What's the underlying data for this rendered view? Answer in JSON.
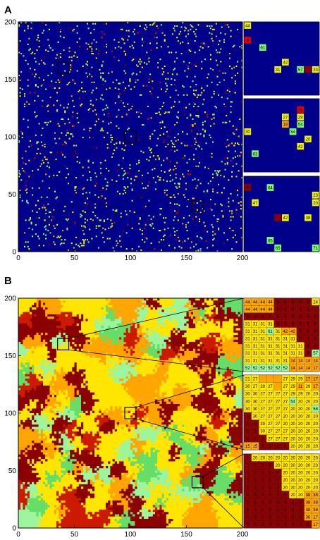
{
  "panels": {
    "a": {
      "letter": "A",
      "x_ticks": [
        "0",
        "50",
        "100",
        "150",
        "200"
      ],
      "y_ticks": [
        "0",
        "50",
        "100",
        "150",
        "200"
      ],
      "colors": {
        "background": "#00008b",
        "green": "#7cfc6c",
        "yellow": "#f2f200",
        "orange": "#ffa500",
        "red": "#e00000",
        "dark_red": "#8b0000"
      },
      "insets": [
        {
          "cells": [
            {
              "c": 0,
              "r": 0,
              "v": "44",
              "col": "yellow"
            },
            {
              "c": 0,
              "r": 2,
              "v": "6",
              "col": "red"
            },
            {
              "c": 2,
              "r": 3,
              "v": "61",
              "col": "green"
            },
            {
              "c": 5,
              "r": 5,
              "v": "42",
              "col": "yellow"
            },
            {
              "c": 4,
              "r": 6,
              "v": "31",
              "col": "yellow"
            },
            {
              "c": 7,
              "r": 6,
              "v": "57",
              "col": "green"
            },
            {
              "c": 8,
              "r": 6,
              "v": "",
              "col": "dark_red"
            },
            {
              "c": 9,
              "r": 6,
              "v": "33",
              "col": "yellow"
            }
          ]
        },
        {
          "cells": [
            {
              "c": 7,
              "r": 1,
              "v": "11",
              "col": "red"
            },
            {
              "c": 5,
              "r": 2,
              "v": "27",
              "col": "yellow"
            },
            {
              "c": 7,
              "r": 2,
              "v": "29",
              "col": "yellow"
            },
            {
              "c": 5,
              "r": 3,
              "v": "18",
              "col": "orange"
            },
            {
              "c": 7,
              "r": 3,
              "v": "54",
              "col": "green"
            },
            {
              "c": 0,
              "r": 4,
              "v": "30",
              "col": "yellow"
            },
            {
              "c": 6,
              "r": 4,
              "v": "54",
              "col": "green"
            },
            {
              "c": 8,
              "r": 5,
              "v": "20",
              "col": "yellow"
            },
            {
              "c": 7,
              "r": 6,
              "v": "42",
              "col": "yellow"
            },
            {
              "c": 1,
              "r": 7,
              "v": "63",
              "col": "green"
            }
          ]
        },
        {
          "cells": [
            {
              "c": 0,
              "r": 1,
              "v": "5",
              "col": "dark_red"
            },
            {
              "c": 3,
              "r": 1,
              "v": "64",
              "col": "green"
            },
            {
              "c": 9,
              "r": 2,
              "v": "23",
              "col": "yellow"
            },
            {
              "c": 1,
              "r": 3,
              "v": "47",
              "col": "yellow"
            },
            {
              "c": 9,
              "r": 3,
              "v": "20",
              "col": "yellow"
            },
            {
              "c": 4,
              "r": 5,
              "v": "",
              "col": "dark_red"
            },
            {
              "c": 5,
              "r": 5,
              "v": "42",
              "col": "yellow"
            },
            {
              "c": 8,
              "r": 5,
              "v": "38",
              "col": "yellow"
            },
            {
              "c": 3,
              "r": 8,
              "v": "65",
              "col": "green"
            },
            {
              "c": 4,
              "r": 9,
              "v": "65",
              "col": "green"
            },
            {
              "c": 9,
              "r": 9,
              "v": "71",
              "col": "green"
            }
          ]
        }
      ]
    },
    "b": {
      "letter": "B",
      "x_ticks": [
        "0",
        "50",
        "100",
        "150",
        "200"
      ],
      "y_ticks": [
        "0",
        "50",
        "100",
        "150",
        "200"
      ],
      "colors": {
        "dark_red": "#8b0000",
        "red": "#cc1a00",
        "orange": "#ffa500",
        "yellow": "#ffe500",
        "light_green": "#9cf59c",
        "green": "#66dd66"
      },
      "insets": [
        {
          "rows": [
            [
              "44",
              "44",
              "44",
              "44",
              "9",
              "9",
              "9",
              "9",
              "9",
              "24"
            ],
            [
              "44",
              "44",
              "44",
              "44",
              "9",
              "9",
              "9",
              "9",
              "9",
              "9"
            ],
            [
              "9",
              "9",
              "9",
              "9",
              "9",
              "9",
              "9",
              "9",
              "9",
              "9"
            ],
            [
              "31",
              "31",
              "31",
              "31",
              "9",
              "9",
              "9",
              "9",
              "9",
              "9"
            ],
            [
              "31",
              "31",
              "31",
              "61",
              "31",
              "42",
              "42",
              "9",
              "9",
              "9"
            ],
            [
              "31",
              "31",
              "31",
              "31",
              "31",
              "31",
              "31",
              "9",
              "9",
              "9"
            ],
            [
              "31",
              "31",
              "31",
              "31",
              "31",
              "31",
              "31",
              "31",
              "9",
              "9"
            ],
            [
              "31",
              "31",
              "31",
              "31",
              "31",
              "31",
              "31",
              "31",
              "9",
              "57"
            ],
            [
              "31",
              "31",
              "31",
              "31",
              "31",
              "31",
              "14",
              "14",
              "14",
              "14"
            ],
            [
              "52",
              "52",
              "52",
              "52",
              "52",
              "52",
              "14",
              "14",
              "14",
              "17"
            ]
          ]
        },
        {
          "rows": [
            [
              "21",
              "27",
              "",
              "",
              "",
              "27",
              "29",
              "29",
              "17",
              "17"
            ],
            [
              "30",
              "27",
              "30",
              "27",
              "",
              "27",
              "29",
              "11",
              "29",
              "17"
            ],
            [
              "30",
              "30",
              "27",
              "27",
              "27",
              "27",
              "29",
              "29",
              "20",
              "20"
            ],
            [
              "30",
              "30",
              "27",
              "27",
              "27",
              "27",
              "54",
              "20",
              "20",
              "20"
            ],
            [
              "30",
              "30",
              "27",
              "27",
              "27",
              "27",
              "20",
              "20",
              "20",
              "58"
            ],
            [
              "5",
              "30",
              "27",
              "27",
              "27",
              "20",
              "20",
              "20",
              "20",
              "20"
            ],
            [
              "5",
              "5",
              "30",
              "27",
              "27",
              "20",
              "20",
              "20",
              "20",
              "20"
            ],
            [
              "5",
              "5",
              "30",
              "27",
              "27",
              "27",
              "20",
              "20",
              "20",
              "20"
            ],
            [
              "5",
              "5",
              "5",
              "27",
              "27",
              "27",
              "20",
              "20",
              "20",
              "20"
            ],
            [
              "15",
              "15",
              "5",
              "5",
              "5",
              "5",
              "20",
              "20",
              "20",
              "20"
            ]
          ]
        },
        {
          "rows": [
            [
              "5",
              "20",
              "20",
              "20",
              "20",
              "20",
              "20",
              "20",
              "20",
              "20"
            ],
            [
              "5",
              "5",
              "5",
              "5",
              "20",
              "20",
              "20",
              "20",
              "20",
              "23"
            ],
            [
              "5",
              "5",
              "5",
              "5",
              "5",
              "20",
              "20",
              "20",
              "20",
              "20"
            ],
            [
              "5",
              "5",
              "5",
              "5",
              "5",
              "20",
              "20",
              "20",
              "20",
              "20"
            ],
            [
              "5",
              "5",
              "5",
              "5",
              "5",
              "20",
              "20",
              "20",
              "20",
              "20"
            ],
            [
              "5",
              "5",
              "5",
              "5",
              "5",
              "5",
              "20",
              "20",
              "38",
              "38"
            ],
            [
              "5",
              "5",
              "5",
              "5",
              "5",
              "5",
              "5",
              "5",
              "38",
              "38"
            ],
            [
              "5",
              "5",
              "5",
              "5",
              "5",
              "5",
              "5",
              "5",
              "38",
              "38"
            ],
            [
              "5",
              "5",
              "5",
              "5",
              "5",
              "5",
              "5",
              "5",
              "38",
              "17"
            ],
            [
              "5",
              "5",
              "5",
              "5",
              "5",
              "5",
              "5",
              "5",
              "5",
              "17"
            ]
          ]
        }
      ]
    }
  }
}
